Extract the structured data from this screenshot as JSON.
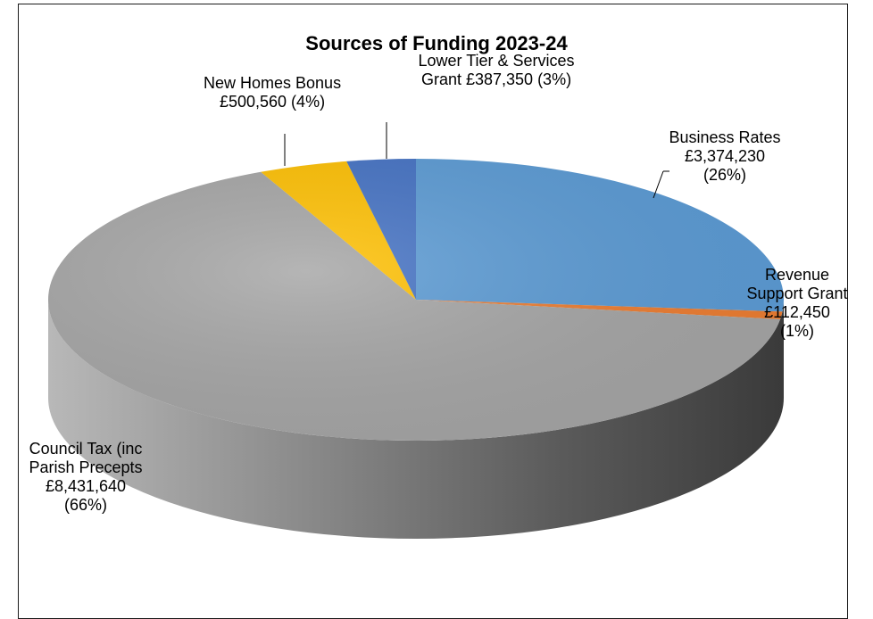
{
  "chart_data": {
    "type": "pie",
    "title": "Sources of Funding 2023-24",
    "currency": "£",
    "slices": [
      {
        "name": "Business Rates",
        "value": 3374230,
        "percent": 26,
        "color": "#5b9bd5",
        "label_lines": [
          "Business Rates",
          "£3,374,230",
          "(26%)"
        ]
      },
      {
        "name": "Revenue Support Grant",
        "value": 112450,
        "percent": 1,
        "color": "#ed7d31",
        "label_lines": [
          "Revenue",
          "Support Grant",
          "£112,450",
          "(1%)"
        ]
      },
      {
        "name": "Council Tax (inc Parish Precepts",
        "value": 8431640,
        "percent": 66,
        "color": "#a5a5a5",
        "label_lines": [
          "Council Tax (inc",
          "Parish Precepts",
          "£8,431,640",
          "(66%)"
        ]
      },
      {
        "name": "New Homes Bonus",
        "value": 500560,
        "percent": 4,
        "color": "#ffc000",
        "label_lines": [
          "New Homes Bonus",
          "£500,560 (4%)"
        ]
      },
      {
        "name": "Lower Tier & Services Grant",
        "value": 387350,
        "percent": 3,
        "color": "#4472c4",
        "label_lines": [
          "Lower Tier & Services",
          "Grant £387,350 (3%)"
        ]
      }
    ],
    "style": "3d-pie",
    "legend": "none"
  }
}
